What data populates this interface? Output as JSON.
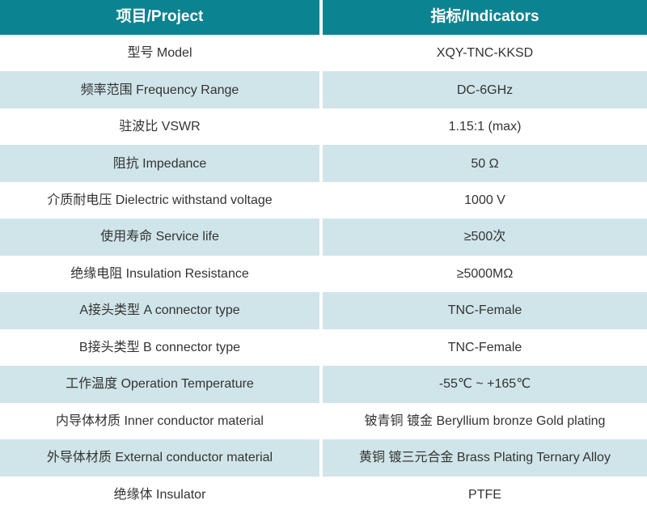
{
  "table": {
    "title_semantics": "RF adapter specification table",
    "header": {
      "project": "项目/Project",
      "indicators": "指标/Indicators"
    },
    "rows": [
      {
        "project": "型号 Model",
        "indicator": "XQY-TNC-KKSD"
      },
      {
        "project": "频率范围 Frequency Range",
        "indicator": "DC-6GHz"
      },
      {
        "project": "驻波比 VSWR",
        "indicator": "1.15:1 (max)"
      },
      {
        "project": "阻抗 Impedance",
        "indicator": "50 Ω"
      },
      {
        "project": "介质耐电压 Dielectric withstand voltage",
        "indicator": "1000 V"
      },
      {
        "project": "使用寿命 Service life",
        "indicator": "≥500次"
      },
      {
        "project": "绝缘电阻 Insulation Resistance",
        "indicator": "≥5000MΩ"
      },
      {
        "project": "A接头类型 A connector type",
        "indicator": "TNC-Female"
      },
      {
        "project": "B接头类型 B connector type",
        "indicator": "TNC-Female"
      },
      {
        "project": "工作温度 Operation Temperature",
        "indicator": "-55℃ ~ +165℃"
      },
      {
        "project": "内导体材质 Inner conductor material",
        "indicator": "铍青铜 镀金 Beryllium bronze Gold plating"
      },
      {
        "project": "外导体材质 External conductor material",
        "indicator": "黄铜 镀三元合金 Brass Plating Ternary Alloy"
      },
      {
        "project": "绝缘体 Insulator",
        "indicator": "PTFE"
      }
    ],
    "colors": {
      "header_bg": "#0B8390",
      "header_text": "#FFFFFF",
      "row_bg": "#FFFFFF",
      "row_alt_bg": "#D0E5E9",
      "body_text": "#333333",
      "gutter": "#FFFFFF"
    }
  }
}
